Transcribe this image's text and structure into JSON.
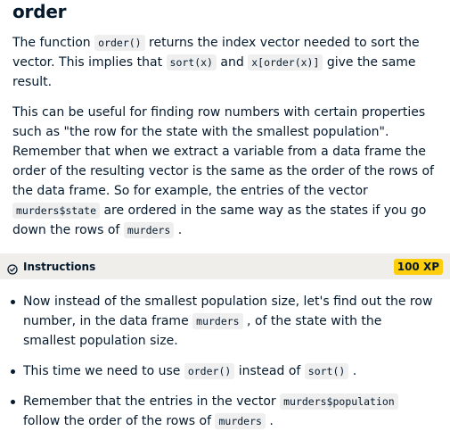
{
  "title": "order",
  "p1": {
    "t1": "The function ",
    "c1": "order()",
    "t2": " returns the index vector needed to sort the vector. This implies that ",
    "c2": "sort(x)",
    "t3": " and ",
    "c3": "x[order(x)]",
    "t4": " give the same result."
  },
  "p2": {
    "t1": "This can be useful for finding row numbers with certain properties such as \"the row for the state with the smallest population\". Remember that when we extract a variable from a data frame the order of the resulting vector is the same as the order of the rows of the data frame. So for example, the entries of the vector ",
    "c1": "murders$state",
    "t2": " are ordered in the same way as the states if you go down the rows of ",
    "c2": "murders",
    "t3": " ."
  },
  "instructions": {
    "title": "Instructions",
    "xp": "100 XP",
    "icon": "check-circle-icon"
  },
  "bullets": {
    "b1": {
      "t1": "Now instead of the smallest population size, let's find out the row number, in the data frame ",
      "c1": "murders",
      "t2": " , of the state with the smallest population size."
    },
    "b2": {
      "t1": "This time we need to use ",
      "c1": "order()",
      "t2": " instead of ",
      "c2": "sort()",
      "t3": " ."
    },
    "b3": {
      "t1": "Remember that the entries in the vector ",
      "c1": "murders$population",
      "t2": " follow the order of the rows of ",
      "c2": "murders",
      "t3": " ."
    }
  },
  "colors": {
    "text": "#05192d",
    "instr_bg": "#efeeea",
    "xp_badge": "#fcce0d",
    "code_bg": "#efefef"
  }
}
